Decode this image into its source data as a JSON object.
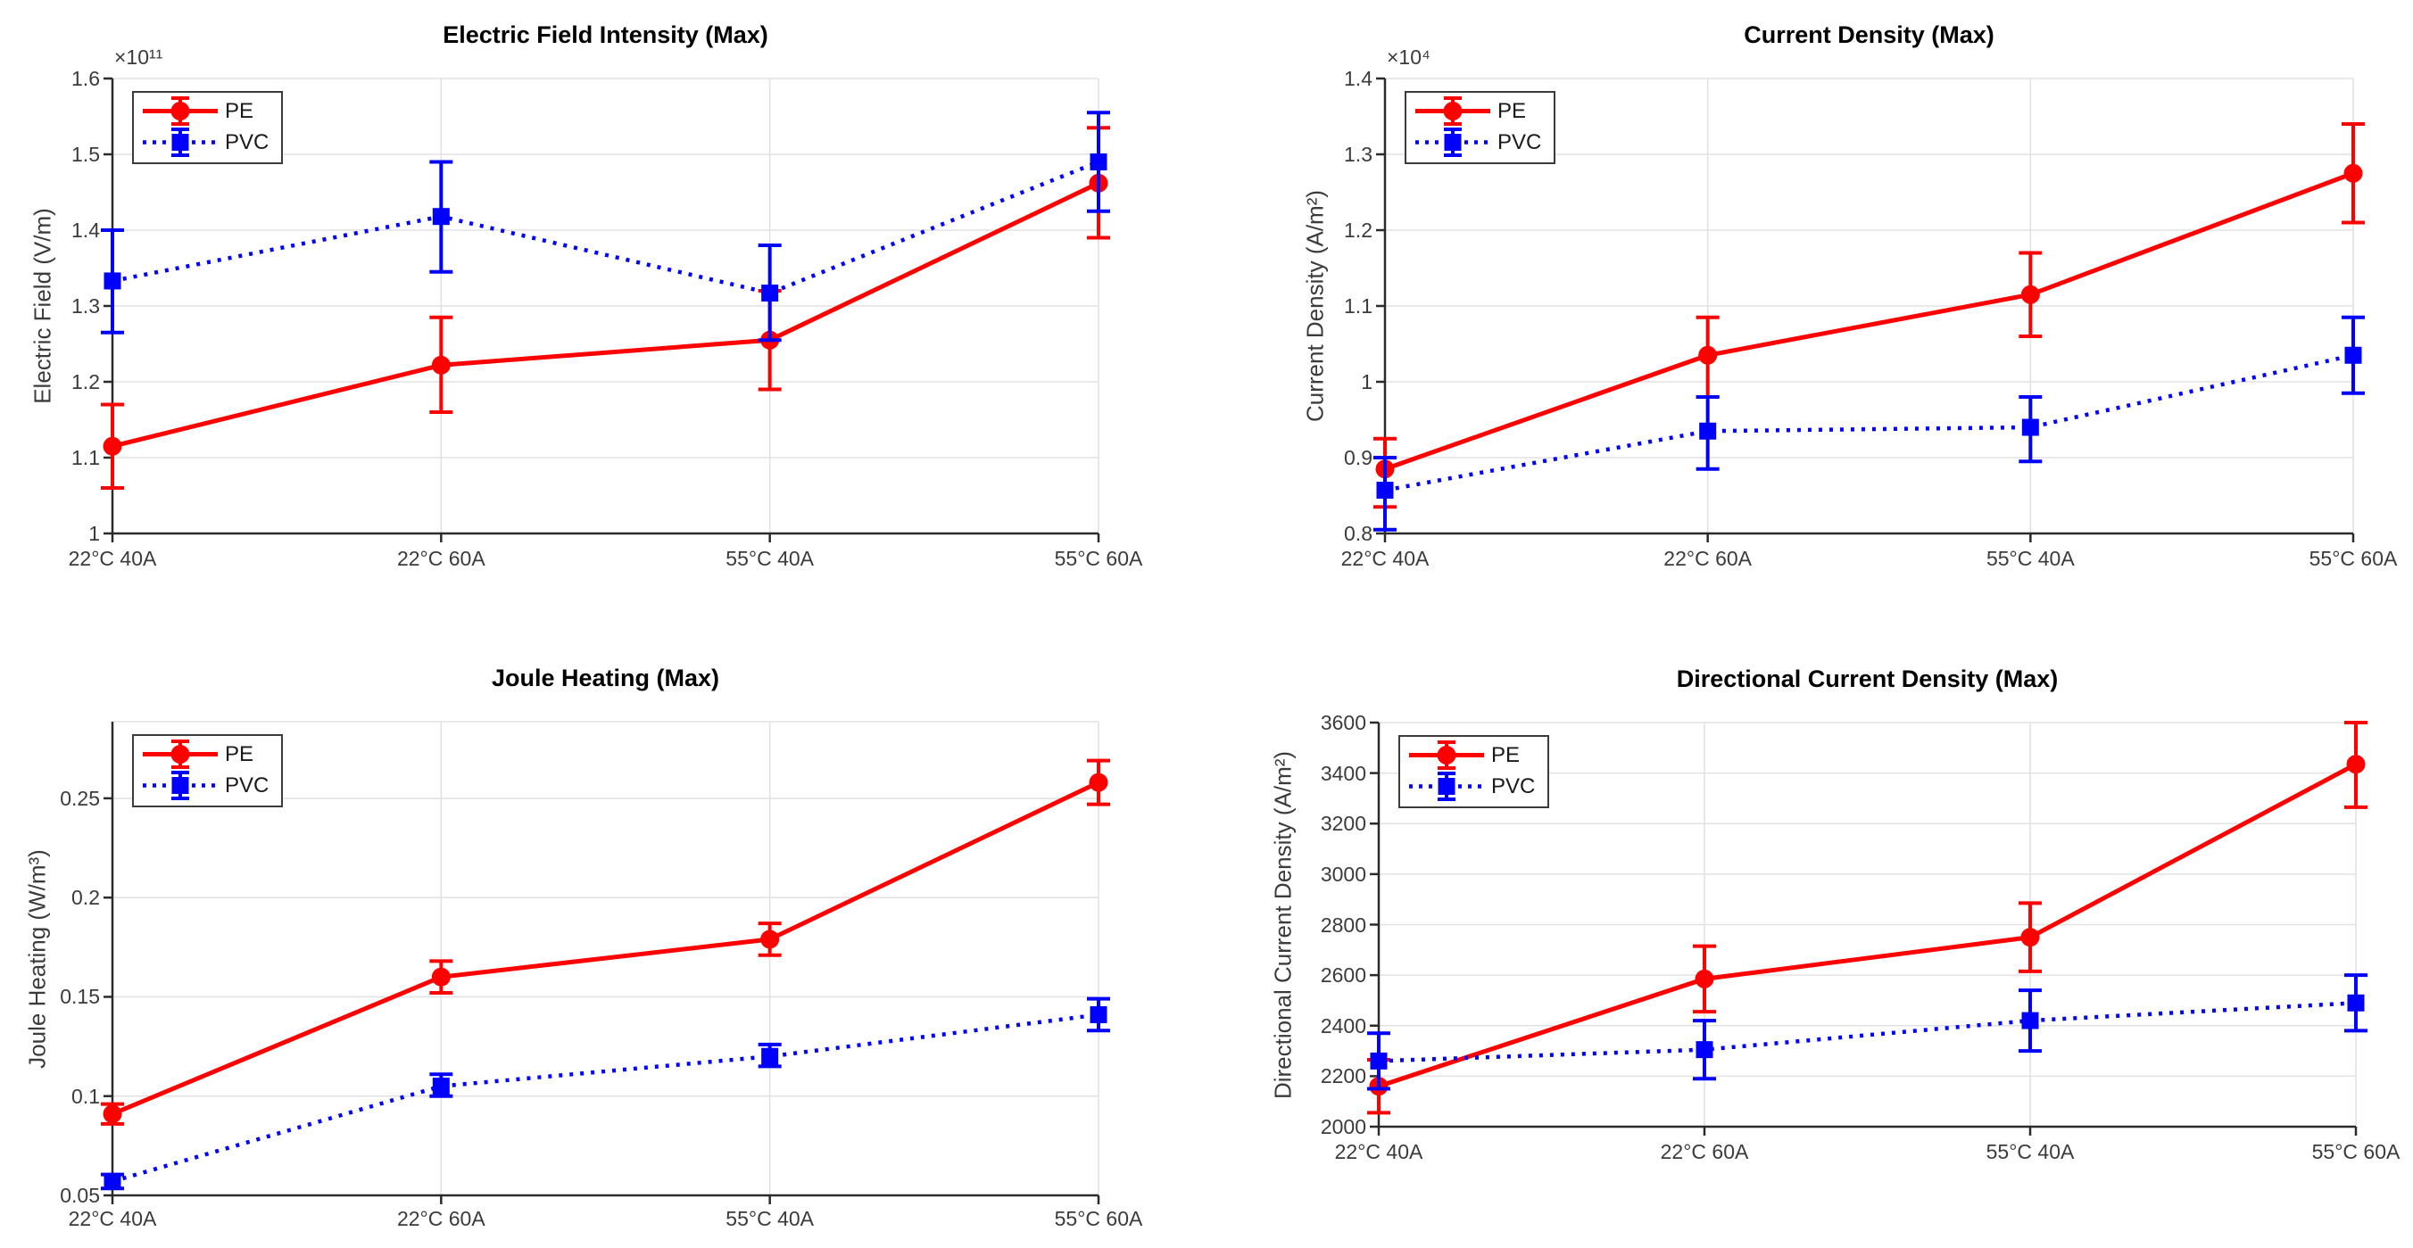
{
  "figure": {
    "background": "#ffffff",
    "series_colors": {
      "pe": "#ff0000",
      "pvc": "#0000ff"
    },
    "grid_color": "#e2e2e2",
    "axis_color": "#2b2b2b"
  },
  "chart_data": [
    {
      "type": "line",
      "title": "Electric Field Intensity (Max)",
      "ylabel": "Electric Field (V/m)",
      "scale_label": "×10¹¹",
      "categories": [
        "22°C 40A",
        "22°C 60A",
        "55°C 40A",
        "55°C 60A"
      ],
      "ylim": [
        1.0,
        1.6
      ],
      "yticks": [
        1.0,
        1.1,
        1.2,
        1.3,
        1.4,
        1.5,
        1.6
      ],
      "ytick_labels": [
        "1",
        "1.1",
        "1.2",
        "1.3",
        "1.4",
        "1.5",
        "1.6"
      ],
      "grid": true,
      "legend_position": "northwest",
      "series": [
        {
          "name": "PE",
          "color": "#ff0000",
          "line_style": "solid",
          "marker": "circle",
          "values": [
            1.115,
            1.222,
            1.255,
            1.462
          ],
          "err_low": [
            1.06,
            1.16,
            1.19,
            1.39
          ],
          "err_high": [
            1.17,
            1.285,
            1.32,
            1.535
          ]
        },
        {
          "name": "PVC",
          "color": "#0000ff",
          "line_style": "dotted",
          "marker": "square",
          "values": [
            1.333,
            1.418,
            1.317,
            1.49
          ],
          "err_low": [
            1.265,
            1.345,
            1.255,
            1.425
          ],
          "err_high": [
            1.4,
            1.49,
            1.38,
            1.555
          ]
        }
      ]
    },
    {
      "type": "line",
      "title": "Current Density (Max)",
      "ylabel": "Current Density (A/m²)",
      "scale_label": "×10⁴",
      "categories": [
        "22°C 40A",
        "22°C 60A",
        "55°C 40A",
        "55°C 60A"
      ],
      "ylim": [
        0.8,
        1.4
      ],
      "yticks": [
        0.8,
        0.9,
        1.0,
        1.1,
        1.2,
        1.3,
        1.4
      ],
      "ytick_labels": [
        "0.8",
        "0.9",
        "1",
        "1.1",
        "1.2",
        "1.3",
        "1.4"
      ],
      "grid": true,
      "legend_position": "northwest",
      "series": [
        {
          "name": "PE",
          "color": "#ff0000",
          "line_style": "solid",
          "marker": "circle",
          "values": [
            0.885,
            1.035,
            1.115,
            1.275
          ],
          "err_low": [
            0.835,
            0.98,
            1.06,
            1.21
          ],
          "err_high": [
            0.925,
            1.085,
            1.17,
            1.34
          ]
        },
        {
          "name": "PVC",
          "color": "#0000ff",
          "line_style": "dotted",
          "marker": "square",
          "values": [
            0.857,
            0.935,
            0.94,
            1.035
          ],
          "err_low": [
            0.805,
            0.885,
            0.895,
            0.985
          ],
          "err_high": [
            0.9,
            0.98,
            0.98,
            1.085
          ]
        }
      ]
    },
    {
      "type": "line",
      "title": "Joule Heating (Max)",
      "ylabel": "Joule Heating (W/m³)",
      "scale_label": "",
      "categories": [
        "22°C 40A",
        "22°C 60A",
        "55°C 40A",
        "55°C 60A"
      ],
      "ylim": [
        0.05,
        0.2886
      ],
      "yticks": [
        0.05,
        0.1,
        0.15,
        0.2,
        0.25
      ],
      "ytick_labels": [
        "0.05",
        "0.1",
        "0.15",
        "0.2",
        "0.25"
      ],
      "grid": true,
      "legend_position": "northwest",
      "series": [
        {
          "name": "PE",
          "color": "#ff0000",
          "line_style": "solid",
          "marker": "circle",
          "values": [
            0.091,
            0.16,
            0.179,
            0.258
          ],
          "err_low": [
            0.086,
            0.152,
            0.171,
            0.247
          ],
          "err_high": [
            0.096,
            0.168,
            0.187,
            0.269
          ]
        },
        {
          "name": "PVC",
          "color": "#0000ff",
          "line_style": "dotted",
          "marker": "square",
          "values": [
            0.057,
            0.105,
            0.12,
            0.141
          ],
          "err_low": [
            0.0535,
            0.1,
            0.115,
            0.133
          ],
          "err_high": [
            0.0605,
            0.111,
            0.126,
            0.149
          ]
        }
      ]
    },
    {
      "type": "line",
      "title": "Directional Current Density (Max)",
      "ylabel": "Directional Current Density (A/m²)",
      "scale_label": "",
      "categories": [
        "22°C 40A",
        "22°C 60A",
        "55°C 40A",
        "55°C 60A"
      ],
      "ylim": [
        2000,
        3600
      ],
      "yticks": [
        2000,
        2200,
        2400,
        2600,
        2800,
        3000,
        3200,
        3400,
        3600
      ],
      "ytick_labels": [
        "2000",
        "2200",
        "2400",
        "2600",
        "2800",
        "3000",
        "3200",
        "3400",
        "3600"
      ],
      "grid": true,
      "legend_position": "northwest",
      "series": [
        {
          "name": "PE",
          "color": "#ff0000",
          "line_style": "solid",
          "marker": "circle",
          "values": [
            2160,
            2585,
            2750,
            3435
          ],
          "err_low": [
            2055,
            2455,
            2615,
            3265
          ],
          "err_high": [
            2265,
            2715,
            2885,
            3600
          ]
        },
        {
          "name": "PVC",
          "color": "#0000ff",
          "line_style": "dotted",
          "marker": "square",
          "values": [
            2260,
            2305,
            2420,
            2490
          ],
          "err_low": [
            2150,
            2190,
            2300,
            2380
          ],
          "err_high": [
            2370,
            2420,
            2540,
            2600
          ]
        }
      ]
    }
  ]
}
